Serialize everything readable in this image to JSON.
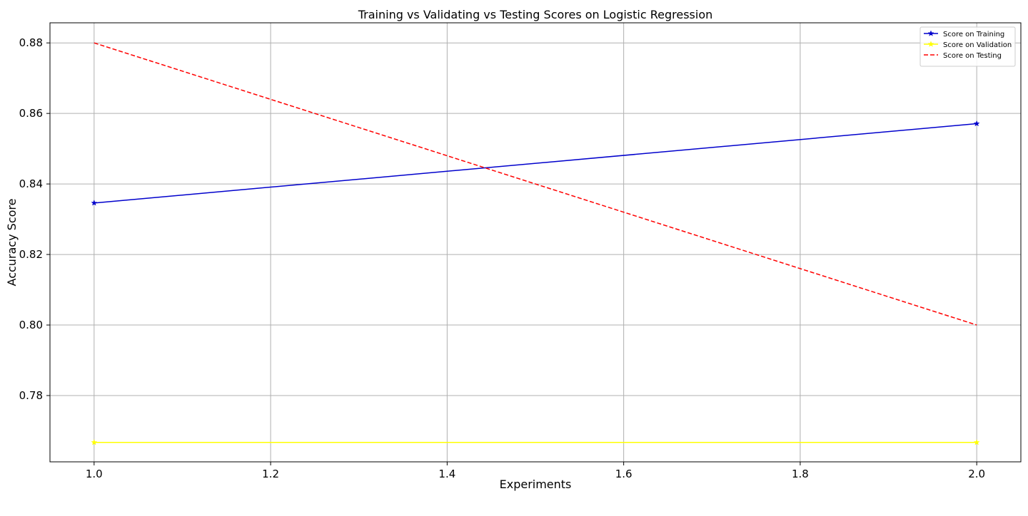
{
  "chart_data": {
    "type": "line",
    "title": "Training vs Validating vs Testing Scores on Logistic Regression",
    "xlabel": "Experiments",
    "ylabel": "Accuracy Score",
    "x": [
      1.0,
      2.0
    ],
    "xlim": [
      0.95,
      2.05
    ],
    "ylim": [
      0.7612,
      0.8857
    ],
    "xticks": [
      1.0,
      1.2,
      1.4,
      1.6,
      1.8,
      2.0
    ],
    "xtick_labels": [
      "1.0",
      "1.2",
      "1.4",
      "1.6",
      "1.8",
      "2.0"
    ],
    "yticks": [
      0.78,
      0.8,
      0.82,
      0.84,
      0.86,
      0.88
    ],
    "ytick_labels": [
      "0.78",
      "0.80",
      "0.82",
      "0.84",
      "0.86",
      "0.88"
    ],
    "grid": true,
    "legend_position": "top-right",
    "series": [
      {
        "name": "Score on Training",
        "values": [
          0.8346,
          0.8571
        ],
        "color": "#0000cc",
        "style": "solid",
        "marker": "star"
      },
      {
        "name": "Score on Validation",
        "values": [
          0.7667,
          0.7667
        ],
        "color": "#ffff00",
        "style": "solid",
        "marker": "star"
      },
      {
        "name": "Score on Testing",
        "values": [
          0.88,
          0.8
        ],
        "color": "#ff0000",
        "style": "dashed",
        "marker": "none"
      }
    ]
  }
}
